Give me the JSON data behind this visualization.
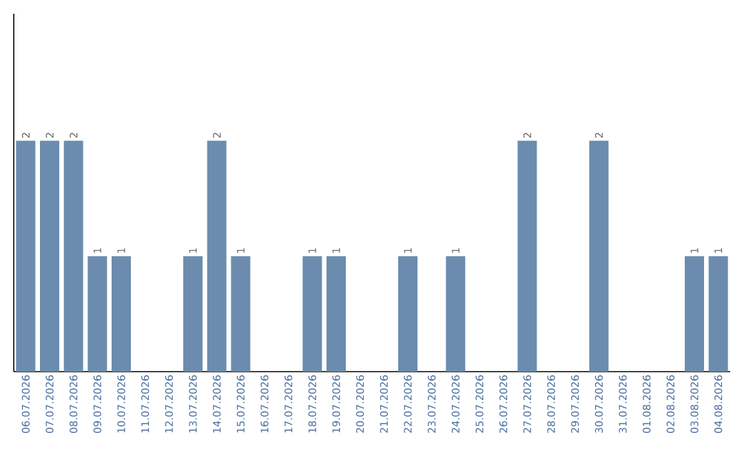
{
  "chart_data": {
    "type": "bar",
    "color": "#6b8cae",
    "categories": [
      "06.07.2026",
      "07.07.2026",
      "08.07.2026",
      "09.07.2026",
      "10.07.2026",
      "11.07.2026",
      "12.07.2026",
      "13.07.2026",
      "14.07.2026",
      "15.07.2026",
      "16.07.2026",
      "17.07.2026",
      "18.07.2026",
      "19.07.2026",
      "20.07.2026",
      "21.07.2026",
      "22.07.2026",
      "23.07.2026",
      "24.07.2026",
      "25.07.2026",
      "26.07.2026",
      "27.07.2026",
      "28.07.2026",
      "29.07.2026",
      "30.07.2026",
      "31.07.2026",
      "01.08.2026",
      "02.08.2026",
      "03.08.2026",
      "04.08.2026"
    ],
    "values": [
      2,
      2,
      2,
      1,
      1,
      0,
      0,
      1,
      2,
      1,
      0,
      0,
      1,
      1,
      0,
      0,
      1,
      0,
      1,
      0,
      0,
      2,
      0,
      0,
      2,
      0,
      0,
      0,
      1,
      1
    ],
    "value_labels": [
      "2",
      "2",
      "2",
      "1",
      "1",
      null,
      null,
      "1",
      "2",
      "1",
      null,
      null,
      "1",
      "1",
      null,
      null,
      "1",
      null,
      "1",
      null,
      null,
      "2",
      null,
      null,
      "2",
      null,
      null,
      null,
      "1",
      "1"
    ],
    "data_labels": false
  }
}
